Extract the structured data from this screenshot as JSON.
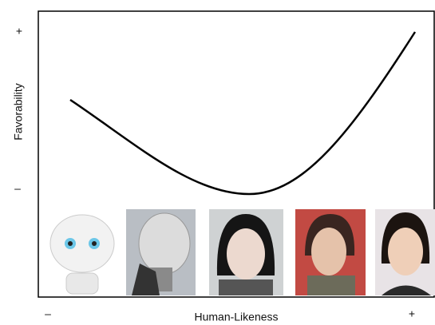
{
  "axes": {
    "y_label": "Favorability",
    "y_high": "+",
    "y_low": "–",
    "x_label": "Human-Likeness",
    "x_low": "–",
    "x_high": "+"
  }
}
